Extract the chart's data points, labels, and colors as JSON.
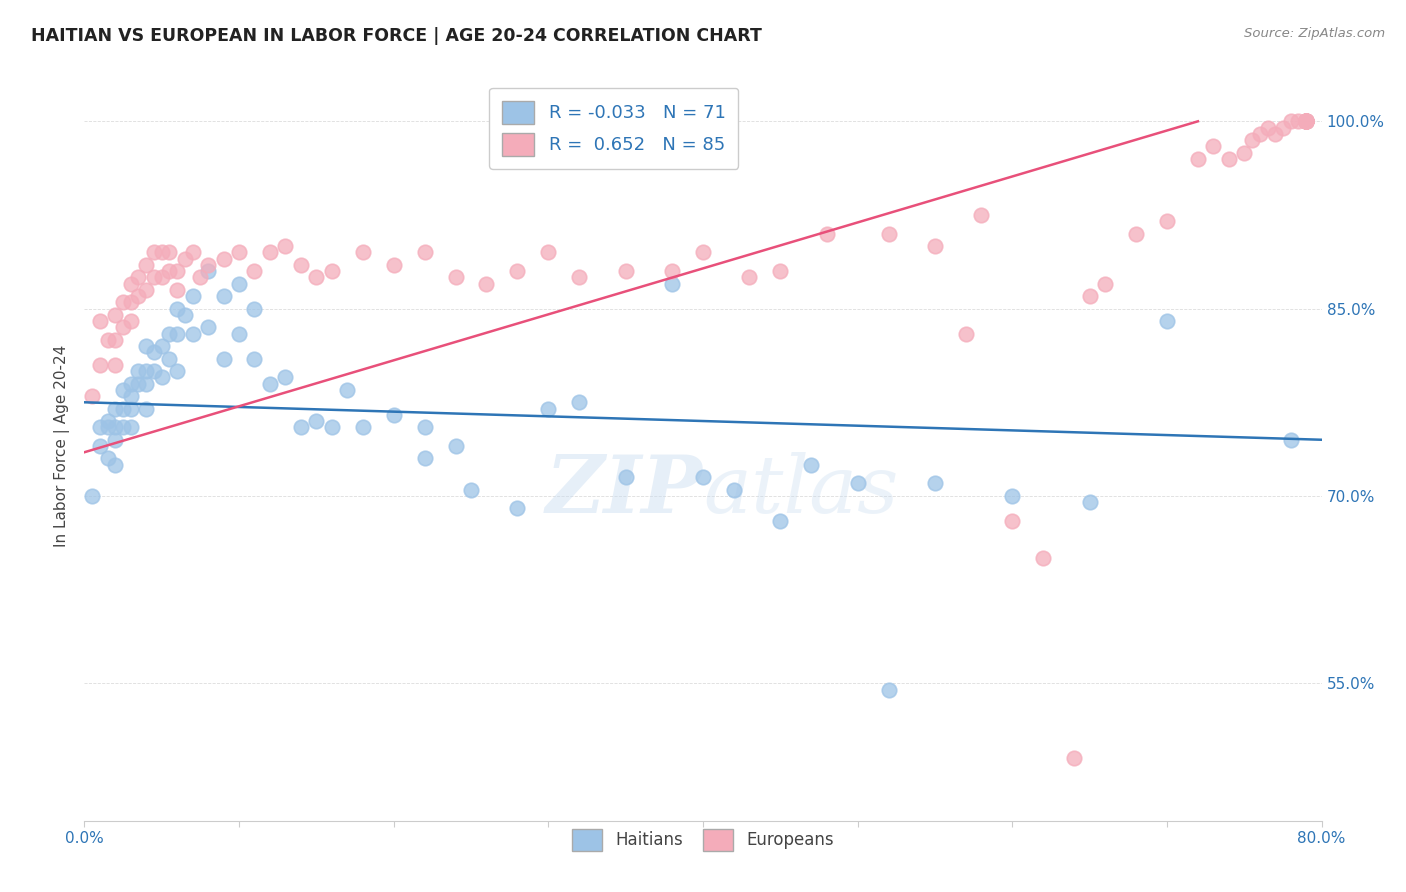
{
  "title": "HAITIAN VS EUROPEAN IN LABOR FORCE | AGE 20-24 CORRELATION CHART",
  "source": "Source: ZipAtlas.com",
  "xlabel": "",
  "ylabel": "In Labor Force | Age 20-24",
  "xlim": [
    0.0,
    0.8
  ],
  "ylim": [
    0.44,
    1.04
  ],
  "xticks": [
    0.0,
    0.1,
    0.2,
    0.3,
    0.4,
    0.5,
    0.6,
    0.7,
    0.8
  ],
  "xticklabels": [
    "0.0%",
    "",
    "",
    "",
    "",
    "",
    "",
    "",
    "80.0%"
  ],
  "ytick_positions": [
    0.55,
    0.7,
    0.85,
    1.0
  ],
  "ytick_labels": [
    "55.0%",
    "70.0%",
    "85.0%",
    "100.0%"
  ],
  "blue_color": "#9DC3E6",
  "pink_color": "#F4ACBA",
  "blue_line_color": "#2E75B6",
  "pink_line_color": "#E8507A",
  "legend_blue_color": "#9DC3E6",
  "legend_pink_color": "#F4ACBA",
  "R_blue": -0.033,
  "N_blue": 71,
  "R_pink": 0.652,
  "N_pink": 85,
  "watermark_zip": "ZIP",
  "watermark_atlas": "atlas",
  "blue_scatter_x": [
    0.005,
    0.01,
    0.01,
    0.015,
    0.015,
    0.015,
    0.02,
    0.02,
    0.02,
    0.02,
    0.025,
    0.025,
    0.025,
    0.03,
    0.03,
    0.03,
    0.03,
    0.035,
    0.035,
    0.04,
    0.04,
    0.04,
    0.04,
    0.045,
    0.045,
    0.05,
    0.05,
    0.055,
    0.055,
    0.06,
    0.06,
    0.06,
    0.065,
    0.07,
    0.07,
    0.08,
    0.08,
    0.09,
    0.09,
    0.1,
    0.1,
    0.11,
    0.11,
    0.12,
    0.13,
    0.14,
    0.15,
    0.16,
    0.17,
    0.18,
    0.2,
    0.22,
    0.22,
    0.24,
    0.25,
    0.28,
    0.3,
    0.32,
    0.35,
    0.38,
    0.4,
    0.42,
    0.45,
    0.47,
    0.5,
    0.52,
    0.55,
    0.6,
    0.65,
    0.7,
    0.78
  ],
  "blue_scatter_y": [
    0.7,
    0.755,
    0.74,
    0.76,
    0.755,
    0.73,
    0.77,
    0.755,
    0.745,
    0.725,
    0.785,
    0.77,
    0.755,
    0.79,
    0.78,
    0.77,
    0.755,
    0.8,
    0.79,
    0.82,
    0.8,
    0.79,
    0.77,
    0.815,
    0.8,
    0.82,
    0.795,
    0.83,
    0.81,
    0.85,
    0.83,
    0.8,
    0.845,
    0.86,
    0.83,
    0.88,
    0.835,
    0.86,
    0.81,
    0.87,
    0.83,
    0.85,
    0.81,
    0.79,
    0.795,
    0.755,
    0.76,
    0.755,
    0.785,
    0.755,
    0.765,
    0.73,
    0.755,
    0.74,
    0.705,
    0.69,
    0.77,
    0.775,
    0.715,
    0.87,
    0.715,
    0.705,
    0.68,
    0.725,
    0.71,
    0.545,
    0.71,
    0.7,
    0.695,
    0.84,
    0.745
  ],
  "pink_scatter_x": [
    0.005,
    0.01,
    0.01,
    0.015,
    0.02,
    0.02,
    0.02,
    0.025,
    0.025,
    0.03,
    0.03,
    0.03,
    0.035,
    0.035,
    0.04,
    0.04,
    0.045,
    0.045,
    0.05,
    0.05,
    0.055,
    0.055,
    0.06,
    0.06,
    0.065,
    0.07,
    0.075,
    0.08,
    0.09,
    0.1,
    0.11,
    0.12,
    0.13,
    0.14,
    0.15,
    0.16,
    0.18,
    0.2,
    0.22,
    0.24,
    0.26,
    0.28,
    0.3,
    0.32,
    0.35,
    0.38,
    0.4,
    0.43,
    0.45,
    0.48,
    0.52,
    0.55,
    0.57,
    0.58,
    0.6,
    0.62,
    0.64,
    0.65,
    0.66,
    0.68,
    0.7,
    0.72,
    0.73,
    0.74,
    0.75,
    0.755,
    0.76,
    0.765,
    0.77,
    0.775,
    0.78,
    0.785,
    0.79,
    0.79,
    0.79,
    0.79,
    0.79,
    0.79,
    0.79,
    0.79,
    0.79,
    0.79,
    0.79,
    0.79,
    0.79
  ],
  "pink_scatter_y": [
    0.78,
    0.84,
    0.805,
    0.825,
    0.845,
    0.825,
    0.805,
    0.855,
    0.835,
    0.87,
    0.855,
    0.84,
    0.875,
    0.86,
    0.885,
    0.865,
    0.895,
    0.875,
    0.895,
    0.875,
    0.895,
    0.88,
    0.88,
    0.865,
    0.89,
    0.895,
    0.875,
    0.885,
    0.89,
    0.895,
    0.88,
    0.895,
    0.9,
    0.885,
    0.875,
    0.88,
    0.895,
    0.885,
    0.895,
    0.875,
    0.87,
    0.88,
    0.895,
    0.875,
    0.88,
    0.88,
    0.895,
    0.875,
    0.88,
    0.91,
    0.91,
    0.9,
    0.83,
    0.925,
    0.68,
    0.65,
    0.49,
    0.86,
    0.87,
    0.91,
    0.92,
    0.97,
    0.98,
    0.97,
    0.975,
    0.985,
    0.99,
    0.995,
    0.99,
    0.995,
    1.0,
    1.0,
    1.0,
    1.0,
    1.0,
    1.0,
    1.0,
    1.0,
    1.0,
    1.0,
    1.0,
    1.0,
    1.0,
    1.0,
    1.0
  ]
}
